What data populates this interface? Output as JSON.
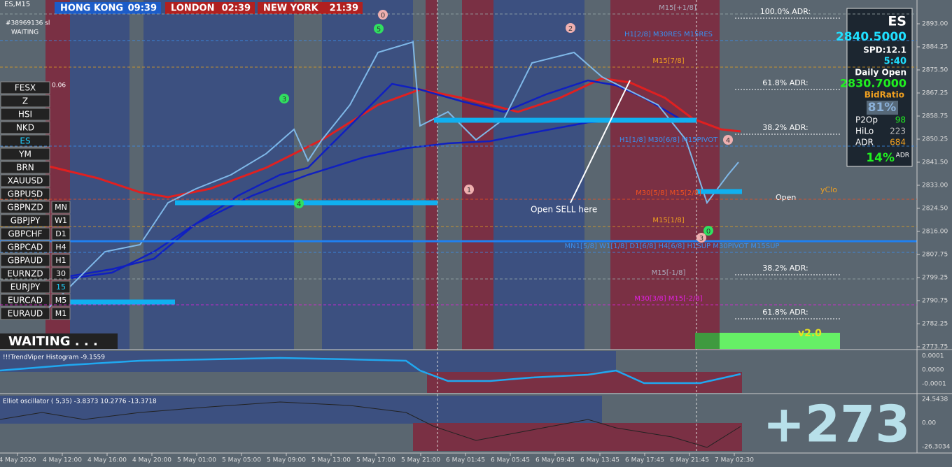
{
  "window": {
    "symbol": "ES,M15",
    "account": "#38969136 sl",
    "status": "WAITING",
    "small_value": "0.06"
  },
  "clocks": [
    {
      "city": "HONG KONG",
      "time": "09:39"
    },
    {
      "city": "LONDON",
      "time": "02:39"
    },
    {
      "city": "NEW YORK",
      "time": "21:39"
    }
  ],
  "symbols": [
    "FESX",
    "Z",
    "HSI",
    "NKD",
    "ES",
    "YM",
    "BRN",
    "XAUUSD",
    "GBPUSD",
    "GBPNZD",
    "GBPJPY",
    "GBPCHF",
    "GBPCAD",
    "GBPAUD",
    "EURNZD",
    "EURJPY",
    "EURCAD",
    "EURAUD"
  ],
  "timeframes": [
    "MN",
    "W1",
    "D1",
    "H4",
    "H1",
    "30",
    "15",
    "M5",
    "M1"
  ],
  "waiting_banner": "WAITING . . .",
  "info_panel": {
    "symbol": "ES",
    "price": "2840.5000",
    "spread": "SPD:12.1",
    "timer": "5:40",
    "daily_open_label": "Daily Open",
    "daily_open": "2830.7000",
    "bid_ratio_label": "BidRatio",
    "bid_ratio": "81%",
    "rows": [
      {
        "label": "P2Op",
        "value": "98"
      },
      {
        "label": "HiLo",
        "value": "223"
      },
      {
        "label": "ADR",
        "value": "684"
      }
    ],
    "adr_pct": "14%",
    "adr_pct_label": "ADR"
  },
  "adr_levels": [
    "100.0% ADR:",
    "61.8% ADR:",
    "38.2% ADR:",
    "38.2% ADR:",
    "61.8% ADR:"
  ],
  "level_labels": [
    "M15[+1/8]",
    "H1[2/8] M30RES M15RES",
    "M15[7/8]",
    "H1[1/8] M30[6/8] M15PIVOT",
    "M30[5/8] M15[2/8]",
    "M15[1/8]",
    "MN1[5/8] W1[1/8] D1[6/8] H4[6/8] H1SUP M30PIVOT M15SUP",
    "M15[-1/8]",
    "M30[3/8] M15[-2/8]"
  ],
  "annotations": {
    "sell": "Open SELL here",
    "open": "Open",
    "yclo": "yClo",
    "version": "v2.0"
  },
  "wave_labels": [
    "0",
    "5",
    "2",
    "3",
    "1",
    "4",
    "4",
    "0",
    "3"
  ],
  "price_axis": [
    "2893.00",
    "2884.25",
    "2875.50",
    "2867.25",
    "2858.75",
    "2850.25",
    "2841.50",
    "2833.00",
    "2824.50",
    "2816.00",
    "2807.75",
    "2799.25",
    "2790.75",
    "2782.25",
    "2773.75"
  ],
  "time_axis": [
    "4 May 2020",
    "4 May 12:00",
    "4 May 16:00",
    "4 May 20:00",
    "5 May 01:00",
    "5 May 05:00",
    "5 May 09:00",
    "5 May 13:00",
    "5 May 17:00",
    "5 May 21:00",
    "6 May 01:45",
    "6 May 05:45",
    "6 May 09:45",
    "6 May 13:45",
    "6 May 17:45",
    "6 May 21:45",
    "7 May 02:30"
  ],
  "histogram": {
    "title": "!!!TrendViper Histogram -9.1559",
    "axis": [
      "0.0001",
      "0.0000",
      "-0.0001"
    ]
  },
  "oscillator": {
    "title": "Elliot oscillator ( 5,35) -3.8373 10.2776 -13.3718",
    "axis": [
      "24.5438",
      "0.00",
      "-26.3034"
    ]
  },
  "big_number": "+273"
}
